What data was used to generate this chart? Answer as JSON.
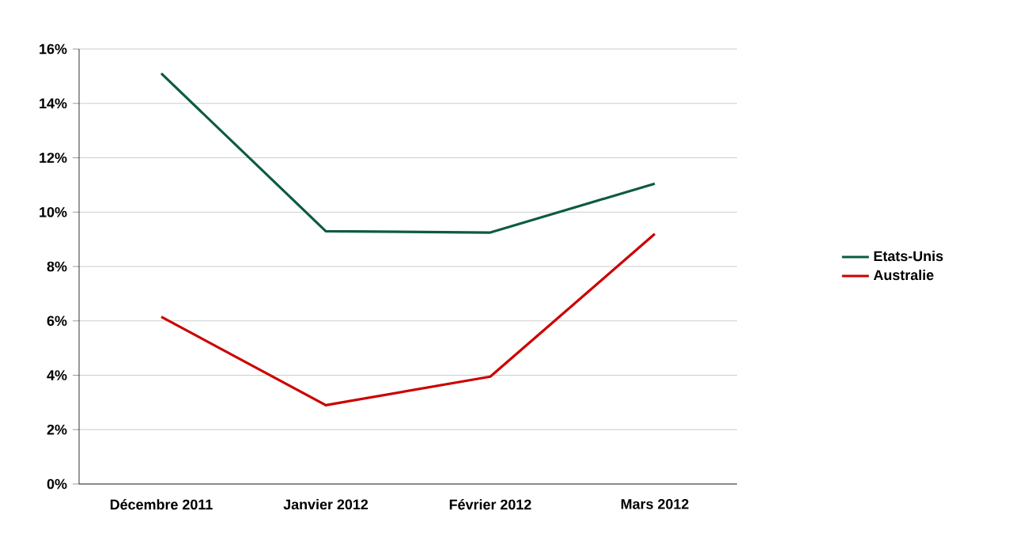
{
  "chart_data": {
    "type": "line",
    "categories": [
      "Décembre 2011",
      "Janvier 2012",
      "Février 2012",
      "Mars 2012"
    ],
    "series": [
      {
        "name": "Etats-Unis",
        "color": "#0d5a45",
        "values": [
          15.1,
          9.3,
          9.25,
          11.05
        ]
      },
      {
        "name": "Australie",
        "color": "#cc0000",
        "values": [
          6.15,
          2.9,
          3.95,
          9.2
        ]
      }
    ],
    "ylim": [
      0,
      16
    ],
    "yticks": [
      {
        "value": 0,
        "label": "0%"
      },
      {
        "value": 2,
        "label": "2%"
      },
      {
        "value": 4,
        "label": "4%"
      },
      {
        "value": 6,
        "label": "6%"
      },
      {
        "value": 8,
        "label": "8%"
      },
      {
        "value": 10,
        "label": "10%"
      },
      {
        "value": 12,
        "label": "12%"
      },
      {
        "value": 14,
        "label": "14%"
      },
      {
        "value": 16,
        "label": "16%"
      }
    ],
    "grid": "y",
    "legend": "right",
    "marker": "none",
    "line_style": "solid"
  }
}
